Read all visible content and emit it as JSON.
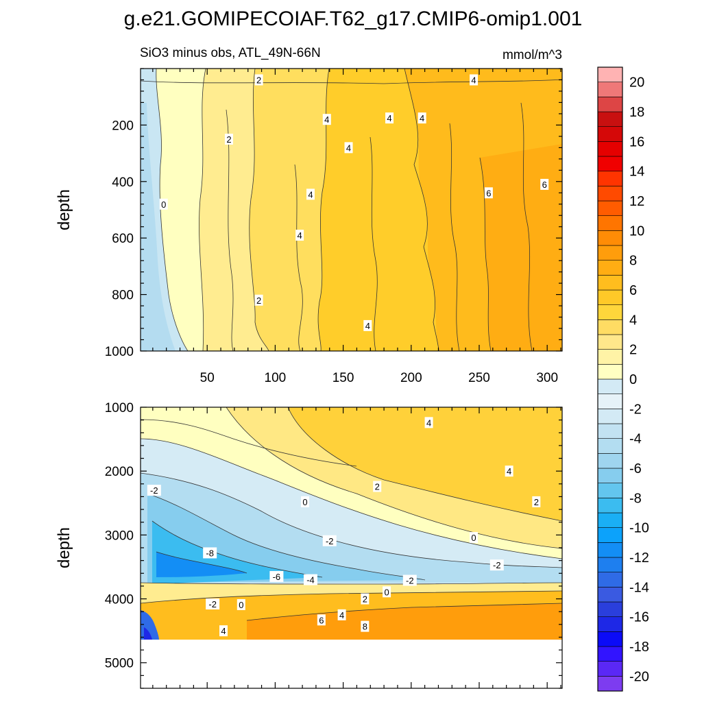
{
  "chart_data": {
    "type": "heatmap",
    "title": "g.e21.GOMIPECOIAF.T62_g17.CMIP6-omip1.001",
    "subtitle_left": "SiO3 minus obs, ATL_49N-66N",
    "subtitle_right": "mmol/m^3",
    "ylabel": "depth",
    "panels": [
      {
        "name": "upper",
        "ylim": [
          1000,
          0
        ],
        "yticks": [
          200,
          400,
          600,
          800,
          1000
        ],
        "xlim": [
          1,
          311
        ],
        "xticks": [
          50,
          100,
          150,
          200,
          250,
          300
        ],
        "contour_labels": [
          {
            "text": "2",
            "x": 88,
            "depth": 40
          },
          {
            "text": "4",
            "x": 246,
            "depth": 40
          },
          {
            "text": "4",
            "x": 138,
            "depth": 180
          },
          {
            "text": "4",
            "x": 184,
            "depth": 175
          },
          {
            "text": "4",
            "x": 208,
            "depth": 175
          },
          {
            "text": "2",
            "x": 66,
            "depth": 250
          },
          {
            "text": "4",
            "x": 154,
            "depth": 280
          },
          {
            "text": "0",
            "x": 18,
            "depth": 480
          },
          {
            "text": "4",
            "x": 126,
            "depth": 445
          },
          {
            "text": "6",
            "x": 257,
            "depth": 440
          },
          {
            "text": "6",
            "x": 298,
            "depth": 410
          },
          {
            "text": "4",
            "x": 118,
            "depth": 590
          },
          {
            "text": "2",
            "x": 88,
            "depth": 820
          },
          {
            "text": "4",
            "x": 168,
            "depth": 910
          }
        ]
      },
      {
        "name": "lower",
        "ylim": [
          5400,
          1000
        ],
        "yticks": [
          1000,
          2000,
          3000,
          4000,
          5000
        ],
        "xlim": [
          1,
          311
        ],
        "contour_labels": [
          {
            "text": "4",
            "x": 213,
            "depth": 1240
          },
          {
            "text": "4",
            "x": 272,
            "depth": 2000
          },
          {
            "text": "-2",
            "x": 11,
            "depth": 2300
          },
          {
            "text": "2",
            "x": 175,
            "depth": 2240
          },
          {
            "text": "0",
            "x": 122,
            "depth": 2480
          },
          {
            "text": "2",
            "x": 292,
            "depth": 2480
          },
          {
            "text": "-2",
            "x": 140,
            "depth": 3090
          },
          {
            "text": "0",
            "x": 246,
            "depth": 3040
          },
          {
            "text": "-8",
            "x": 52,
            "depth": 3280
          },
          {
            "text": "-2",
            "x": 263,
            "depth": 3470
          },
          {
            "text": "-6",
            "x": 101,
            "depth": 3650
          },
          {
            "text": "-4",
            "x": 126,
            "depth": 3700
          },
          {
            "text": "-2",
            "x": 199,
            "depth": 3710
          },
          {
            "text": "0",
            "x": 182,
            "depth": 3890
          },
          {
            "text": "2",
            "x": 166,
            "depth": 4000
          },
          {
            "text": "-2",
            "x": 54,
            "depth": 4080
          },
          {
            "text": "0",
            "x": 75,
            "depth": 4090
          },
          {
            "text": "4",
            "x": 149,
            "depth": 4250
          },
          {
            "text": "6",
            "x": 134,
            "depth": 4330
          },
          {
            "text": "8",
            "x": 166,
            "depth": 4430
          },
          {
            "text": "4",
            "x": 62,
            "depth": 4500
          }
        ]
      }
    ],
    "colorbar": {
      "min": -21,
      "max": 21,
      "step": 1,
      "tick_labels": [
        "20",
        "18",
        "16",
        "14",
        "12",
        "10",
        "8",
        "6",
        "4",
        "2",
        "0",
        "-2",
        "-4",
        "-6",
        "-8",
        "-10",
        "-12",
        "-14",
        "-16",
        "-18",
        "-20"
      ],
      "colors": [
        "#7d3cf0",
        "#5a28f5",
        "#3214ff",
        "#0b0bf7",
        "#1e28e6",
        "#2a3fdc",
        "#3a5ae1",
        "#2f6be6",
        "#1e7fef",
        "#138ef5",
        "#0ca2fb",
        "#1aaff5",
        "#3bbcf0",
        "#63c6ee",
        "#86cdee",
        "#9fd5ef",
        "#b3ddf1",
        "#c2e2f2",
        "#d3eaf5",
        "#e6f2f8",
        "#d3eaf5",
        "#ffffc2",
        "#fff3a6",
        "#ffe78b",
        "#ffdc63",
        "#ffd63b",
        "#ffc928",
        "#ffbd1e",
        "#ffad13",
        "#ff9d0c",
        "#ff8c06",
        "#ff7500",
        "#ff5c00",
        "#ff4a00",
        "#ff3400",
        "#f00000",
        "#e50000",
        "#d50808",
        "#c81010",
        "#dd4545",
        "#ef7878",
        "#ffb3b3"
      ]
    }
  }
}
